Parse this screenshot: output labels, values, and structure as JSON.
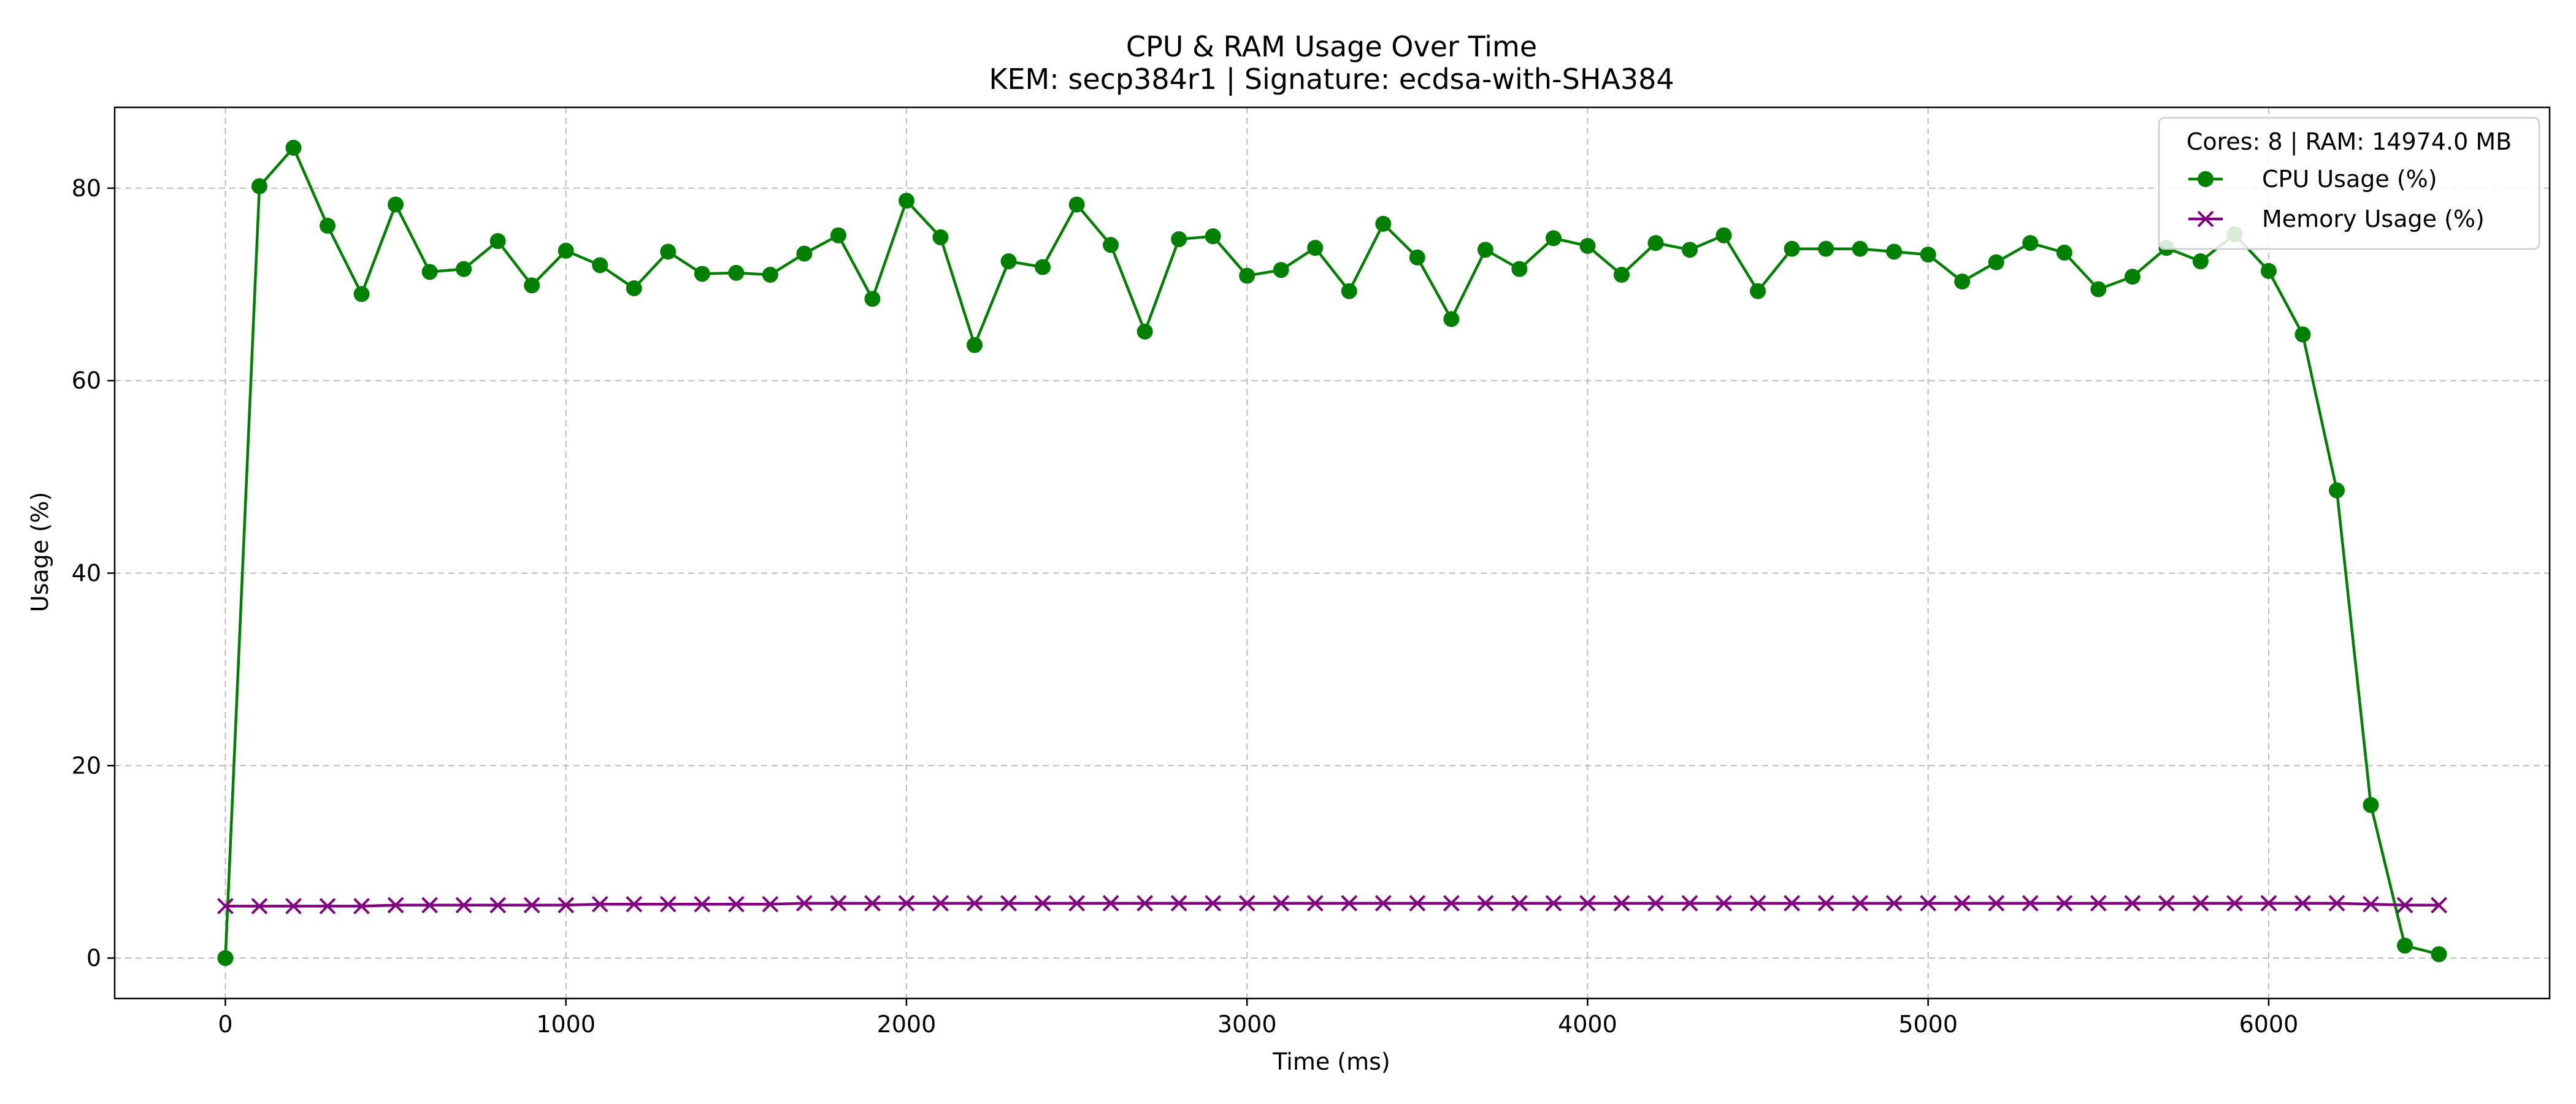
{
  "chart_data": {
    "type": "line",
    "title": "CPU & RAM Usage Over Time",
    "subtitle": "KEM: secp384r1 | Signature: ecdsa-with-SHA384",
    "xlabel": "Time (ms)",
    "ylabel": "Usage (%)",
    "xlim": [
      -325,
      6825
    ],
    "ylim": [
      -4.2,
      88.4
    ],
    "xticks": [
      0,
      1000,
      2000,
      3000,
      4000,
      5000,
      6000
    ],
    "yticks": [
      0,
      20,
      40,
      60,
      80
    ],
    "grid": true,
    "legend": {
      "placement": "top-right",
      "title": "Cores: 8 | RAM: 14974.0 MB",
      "entries": [
        "CPU Usage (%)",
        "Memory Usage (%)"
      ]
    },
    "x": [
      0,
      100,
      200,
      300,
      400,
      500,
      600,
      700,
      800,
      900,
      1000,
      1100,
      1200,
      1300,
      1400,
      1500,
      1600,
      1700,
      1800,
      1900,
      2000,
      2100,
      2200,
      2300,
      2400,
      2500,
      2600,
      2700,
      2800,
      2900,
      3000,
      3100,
      3200,
      3300,
      3400,
      3500,
      3600,
      3700,
      3800,
      3900,
      4000,
      4100,
      4200,
      4300,
      4400,
      4500,
      4600,
      4700,
      4800,
      4900,
      5000,
      5100,
      5200,
      5300,
      5400,
      5500,
      5600,
      5700,
      5800,
      5900,
      6000,
      6100,
      6200,
      6300,
      6400,
      6500
    ],
    "series": [
      {
        "name": "CPU Usage (%)",
        "color": "#008000",
        "marker": "circle",
        "values": [
          0.0,
          80.2,
          84.2,
          76.1,
          69.0,
          78.3,
          71.3,
          71.6,
          74.5,
          69.9,
          73.5,
          72.0,
          69.6,
          73.4,
          71.1,
          71.2,
          71.0,
          73.2,
          75.1,
          68.5,
          78.7,
          74.9,
          63.7,
          72.4,
          71.8,
          78.3,
          74.1,
          65.1,
          74.7,
          75.0,
          70.9,
          71.5,
          73.8,
          69.3,
          76.3,
          72.8,
          66.4,
          73.6,
          71.6,
          74.8,
          74.0,
          71.0,
          74.3,
          73.6,
          75.1,
          69.3,
          73.7,
          73.7,
          73.7,
          73.4,
          73.1,
          70.3,
          72.3,
          74.3,
          73.3,
          69.5,
          70.8,
          73.8,
          72.4,
          75.2,
          71.4,
          64.8,
          48.6,
          15.9,
          1.3,
          0.4
        ]
      },
      {
        "name": "Memory Usage (%)",
        "color": "#800080",
        "marker": "x",
        "values": [
          5.4,
          5.4,
          5.4,
          5.4,
          5.4,
          5.5,
          5.5,
          5.5,
          5.5,
          5.5,
          5.5,
          5.6,
          5.6,
          5.6,
          5.6,
          5.6,
          5.6,
          5.7,
          5.7,
          5.7,
          5.7,
          5.7,
          5.7,
          5.7,
          5.7,
          5.7,
          5.7,
          5.7,
          5.7,
          5.7,
          5.7,
          5.7,
          5.7,
          5.7,
          5.7,
          5.7,
          5.7,
          5.7,
          5.7,
          5.7,
          5.7,
          5.7,
          5.7,
          5.7,
          5.7,
          5.7,
          5.7,
          5.7,
          5.7,
          5.7,
          5.7,
          5.7,
          5.7,
          5.7,
          5.7,
          5.7,
          5.7,
          5.7,
          5.7,
          5.7,
          5.7,
          5.7,
          5.7,
          5.6,
          5.5,
          5.5
        ]
      }
    ]
  }
}
